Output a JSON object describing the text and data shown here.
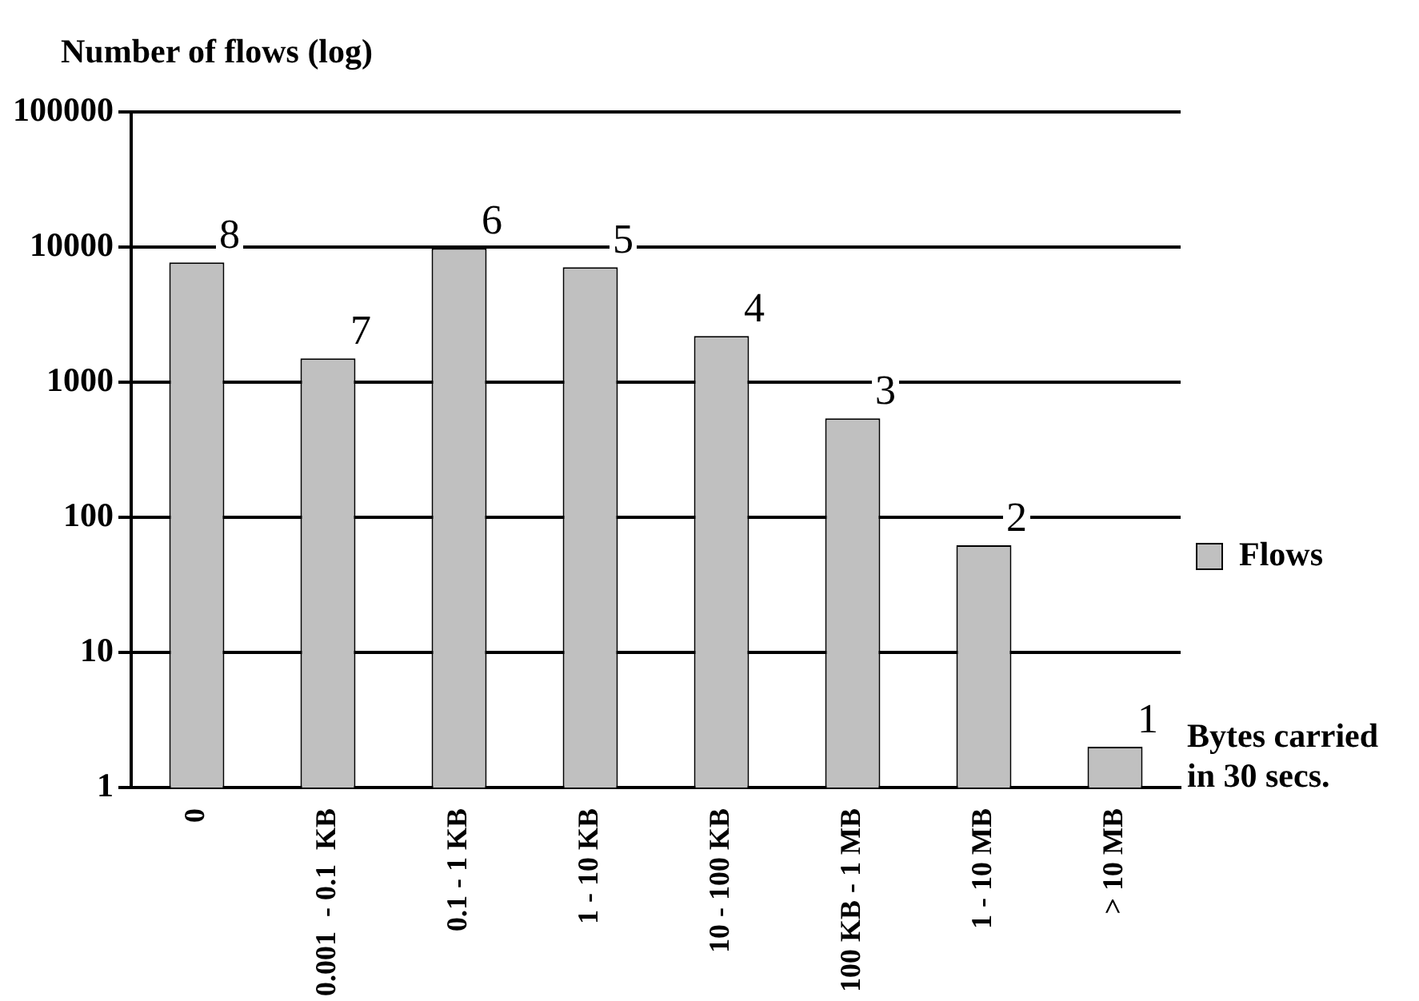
{
  "chart_data": {
    "type": "bar",
    "ylabel": "Number of flows (log)",
    "xlabel": "Bytes carried\nin 30 secs.",
    "categories": [
      "0",
      "0.001  - 0.1  KB",
      "0.1 - 1 KB",
      "1 - 10 KB",
      "10 - 100 KB",
      "100 KB - 1 MB",
      "1 - 10 MB",
      "> 10 MB"
    ],
    "series": [
      {
        "name": "Flows",
        "color": "#c0c0c0",
        "values": [
          7700,
          1500,
          9800,
          7100,
          2200,
          540,
          62,
          2
        ]
      }
    ],
    "log": true,
    "ylim": [
      1,
      100000
    ],
    "yticks": [
      1,
      10,
      100,
      1000,
      10000,
      100000
    ],
    "grid": "y",
    "legend": "right",
    "annotations": [
      {
        "text": "8",
        "x": "0",
        "y": 7700
      },
      {
        "text": "7",
        "x": "0.001  - 0.1  KB",
        "y": 1500
      },
      {
        "text": "6",
        "x": "0.1 - 1 KB",
        "y": 9800
      },
      {
        "text": "5",
        "x": "1 - 10 KB",
        "y": 7100
      },
      {
        "text": "4",
        "x": "10 - 100 KB",
        "y": 2200
      },
      {
        "text": "3",
        "x": "100 KB - 1 MB",
        "y": 540
      },
      {
        "text": "2",
        "x": "1 - 10 MB",
        "y": 62
      },
      {
        "text": "1",
        "x": "> 10 MB",
        "y": 2
      }
    ]
  }
}
